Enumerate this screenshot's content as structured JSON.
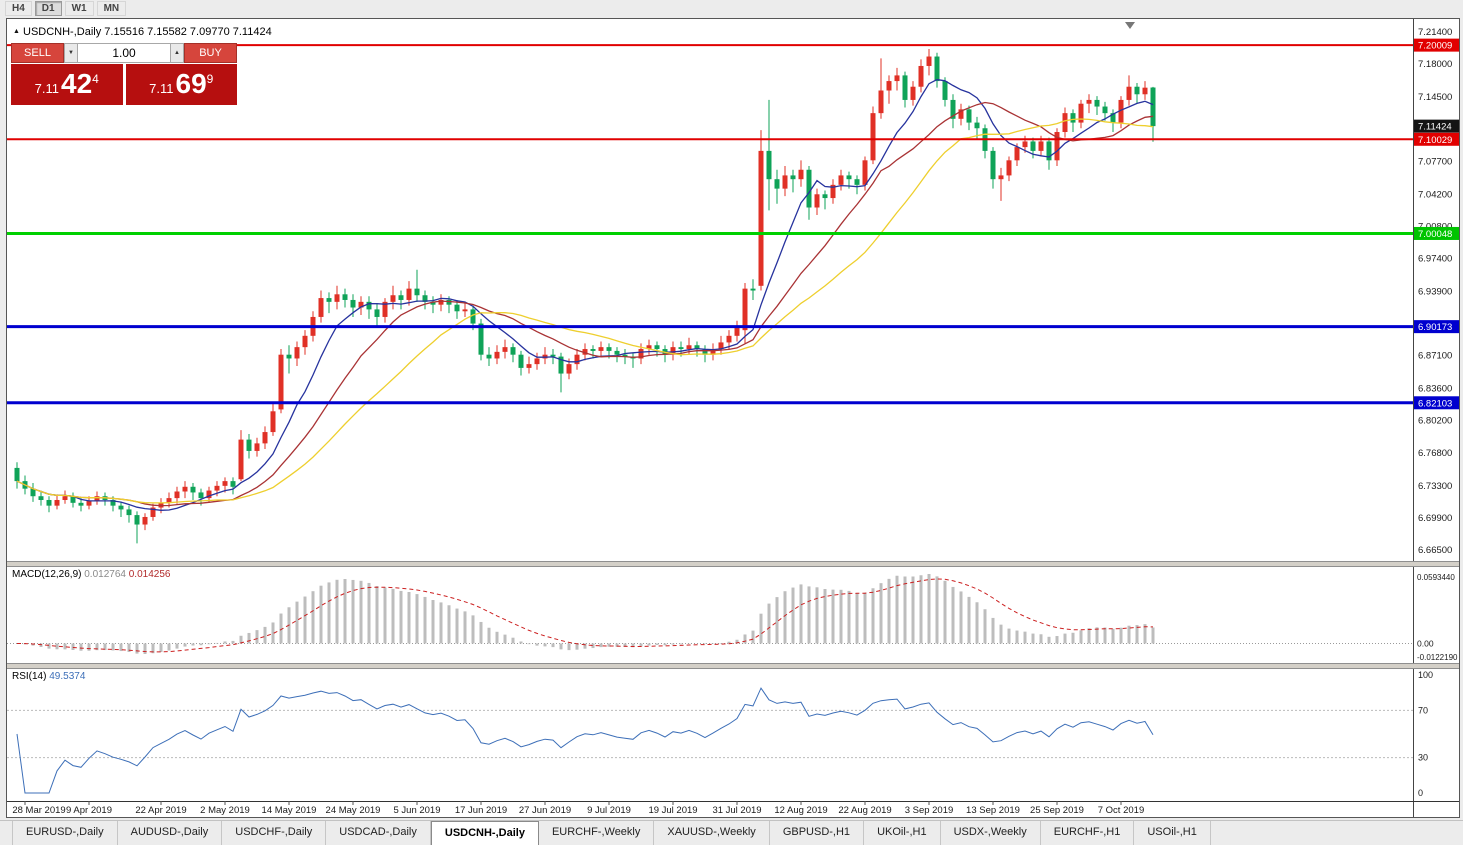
{
  "toolbar": {
    "periods": [
      "H4",
      "D1",
      "W1",
      "MN"
    ],
    "active": "D1"
  },
  "chart_header": {
    "marker": "▲",
    "title": "USDCNH-,Daily",
    "ohlc": "7.15516 7.15582 7.09770 7.11424"
  },
  "icons": {
    "spinner_up": "▲",
    "spinner_down": "▼",
    "shift_marker": "▼"
  },
  "trade_panel": {
    "sell_label": "SELL",
    "buy_label": "BUY",
    "volume": "1.00",
    "sell_price": {
      "prefix": "7.11",
      "big": "42",
      "sup": "4"
    },
    "buy_price": {
      "prefix": "7.11",
      "big": "69",
      "sup": "9"
    }
  },
  "indicators": {
    "macd": {
      "name": "MACD(12,26,9)",
      "value_main": "0.012764",
      "value_signal": "0.014256",
      "scale": [
        "0.0593440",
        "0.00",
        "-0.0122190"
      ]
    },
    "rsi": {
      "name": "RSI(14)",
      "value": "49.5374",
      "scale": [
        "100",
        "70",
        "30",
        "0"
      ],
      "levels": [
        70,
        30
      ]
    }
  },
  "price_scale": {
    "ticks": [
      "7.21400",
      "7.18000",
      "7.14500",
      "7.07700",
      "7.04200",
      "7.00800",
      "6.97400",
      "6.93900",
      "6.87100",
      "6.83600",
      "6.80200",
      "6.76800",
      "6.73300",
      "6.69900",
      "6.66500"
    ],
    "markers": [
      {
        "label": "7.20009",
        "value": 7.20009,
        "bg": "#e10000"
      },
      {
        "label": "7.11424",
        "value": 7.11424,
        "bg": "#141414"
      },
      {
        "label": "7.10029",
        "value": 7.10029,
        "bg": "#e10000"
      },
      {
        "label": "7.00048",
        "value": 7.00048,
        "bg": "#00c400"
      },
      {
        "label": "6.90173",
        "value": 6.90173,
        "bg": "#0000cf"
      },
      {
        "label": "6.82103",
        "value": 6.82103,
        "bg": "#0000cf"
      }
    ]
  },
  "chart_data": {
    "type": "candlestick",
    "symbol": "USDCNH",
    "timeframe": "Daily",
    "y_range": [
      6.665,
      7.214
    ],
    "up_color": "#e03026",
    "down_color": "#0fa358",
    "hlines": [
      {
        "value": 7.20009,
        "color": "#e10000",
        "width": 2
      },
      {
        "value": 7.10029,
        "color": "#e10000",
        "width": 2
      },
      {
        "value": 7.00048,
        "color": "#00d000",
        "width": 3
      },
      {
        "value": 6.90173,
        "color": "#0000cf",
        "width": 3
      },
      {
        "value": 6.82103,
        "color": "#0000cf",
        "width": 3
      }
    ],
    "moving_averages": [
      {
        "period": 8,
        "color": "#27339e"
      },
      {
        "period": 16,
        "color": "#a93335"
      },
      {
        "period": 26,
        "color": "#eecf2e"
      }
    ],
    "macd": {
      "fast": 12,
      "slow": 26,
      "signal": 9,
      "hist_color": "#bdbdbd",
      "signal_color": "#cc2020"
    },
    "rsi": {
      "period": 14,
      "color": "#3d6fb8"
    },
    "x_labels": [
      {
        "label": "28 Mar 2019",
        "i": 1
      },
      {
        "label": "9 Apr 2019",
        "i": 9
      },
      {
        "label": "22 Apr 2019",
        "i": 18
      },
      {
        "label": "2 May 2019",
        "i": 26
      },
      {
        "label": "14 May 2019",
        "i": 34
      },
      {
        "label": "24 May 2019",
        "i": 42
      },
      {
        "label": "5 Jun 2019",
        "i": 50
      },
      {
        "label": "17 Jun 2019",
        "i": 58
      },
      {
        "label": "27 Jun 2019",
        "i": 66
      },
      {
        "label": "9 Jul 2019",
        "i": 74
      },
      {
        "label": "19 Jul 2019",
        "i": 82
      },
      {
        "label": "31 Jul 2019",
        "i": 90
      },
      {
        "label": "12 Aug 2019",
        "i": 98
      },
      {
        "label": "22 Aug 2019",
        "i": 106
      },
      {
        "label": "3 Sep 2019",
        "i": 114
      },
      {
        "label": "13 Sep 2019",
        "i": 122
      },
      {
        "label": "25 Sep 2019",
        "i": 130
      },
      {
        "label": "7 Oct 2019",
        "i": 138
      }
    ],
    "candles": [
      [
        6.752,
        6.758,
        6.73,
        6.738
      ],
      [
        6.738,
        6.744,
        6.724,
        6.73
      ],
      [
        6.73,
        6.736,
        6.716,
        6.722
      ],
      [
        6.722,
        6.728,
        6.712,
        6.718
      ],
      [
        6.718,
        6.722,
        6.705,
        6.712
      ],
      [
        6.712,
        6.724,
        6.708,
        6.718
      ],
      [
        6.718,
        6.728,
        6.714,
        6.722
      ],
      [
        6.722,
        6.726,
        6.71,
        6.715
      ],
      [
        6.715,
        6.72,
        6.706,
        6.712
      ],
      [
        6.712,
        6.722,
        6.708,
        6.717
      ],
      [
        6.717,
        6.727,
        6.713,
        6.722
      ],
      [
        6.722,
        6.726,
        6.712,
        6.718
      ],
      [
        6.718,
        6.722,
        6.706,
        6.712
      ],
      [
        6.712,
        6.716,
        6.7,
        6.708
      ],
      [
        6.708,
        6.712,
        6.694,
        6.702
      ],
      [
        6.702,
        6.706,
        6.672,
        6.692
      ],
      [
        6.692,
        6.704,
        6.686,
        6.7
      ],
      [
        6.7,
        6.714,
        6.696,
        6.71
      ],
      [
        6.71,
        6.72,
        6.704,
        6.715
      ],
      [
        6.715,
        6.726,
        6.71,
        6.72
      ],
      [
        6.72,
        6.732,
        6.714,
        6.727
      ],
      [
        6.727,
        6.738,
        6.72,
        6.732
      ],
      [
        6.732,
        6.736,
        6.718,
        6.726
      ],
      [
        6.726,
        6.73,
        6.712,
        6.72
      ],
      [
        6.72,
        6.732,
        6.715,
        6.728
      ],
      [
        6.728,
        6.738,
        6.722,
        6.733
      ],
      [
        6.733,
        6.742,
        6.726,
        6.738
      ],
      [
        6.738,
        6.742,
        6.724,
        6.732
      ],
      [
        6.74,
        6.792,
        6.738,
        6.782
      ],
      [
        6.782,
        6.788,
        6.762,
        6.77
      ],
      [
        6.77,
        6.784,
        6.764,
        6.778
      ],
      [
        6.778,
        6.796,
        6.772,
        6.79
      ],
      [
        6.79,
        6.82,
        6.786,
        6.812
      ],
      [
        6.814,
        6.878,
        6.81,
        6.872
      ],
      [
        6.872,
        6.882,
        6.852,
        6.868
      ],
      [
        6.868,
        6.886,
        6.86,
        6.88
      ],
      [
        6.88,
        6.898,
        6.872,
        6.892
      ],
      [
        6.892,
        6.918,
        6.886,
        6.912
      ],
      [
        6.912,
        6.94,
        6.906,
        6.932
      ],
      [
        6.932,
        6.938,
        6.916,
        6.928
      ],
      [
        6.928,
        6.945,
        6.92,
        6.936
      ],
      [
        6.936,
        6.942,
        6.922,
        6.93
      ],
      [
        6.93,
        6.936,
        6.912,
        6.922
      ],
      [
        6.922,
        6.934,
        6.914,
        6.928
      ],
      [
        6.928,
        6.934,
        6.91,
        6.92
      ],
      [
        6.92,
        6.926,
        6.902,
        6.912
      ],
      [
        6.912,
        6.932,
        6.906,
        6.928
      ],
      [
        6.928,
        6.945,
        6.92,
        6.935
      ],
      [
        6.935,
        6.94,
        6.92,
        6.93
      ],
      [
        6.93,
        6.95,
        6.924,
        6.942
      ],
      [
        6.942,
        6.962,
        6.928,
        6.935
      ],
      [
        6.935,
        6.94,
        6.92,
        6.928
      ],
      [
        6.928,
        6.934,
        6.916,
        6.925
      ],
      [
        6.925,
        6.936,
        6.918,
        6.93
      ],
      [
        6.93,
        6.934,
        6.916,
        6.925
      ],
      [
        6.925,
        6.93,
        6.91,
        6.918
      ],
      [
        6.918,
        6.928,
        6.912,
        6.92
      ],
      [
        6.92,
        6.924,
        6.898,
        6.905
      ],
      [
        6.905,
        6.91,
        6.866,
        6.872
      ],
      [
        6.872,
        6.88,
        6.86,
        6.868
      ],
      [
        6.868,
        6.882,
        6.862,
        6.875
      ],
      [
        6.875,
        6.888,
        6.868,
        6.88
      ],
      [
        6.88,
        6.884,
        6.864,
        6.872
      ],
      [
        6.872,
        6.876,
        6.85,
        6.858
      ],
      [
        6.858,
        6.87,
        6.852,
        6.862
      ],
      [
        6.862,
        6.874,
        6.856,
        6.868
      ],
      [
        6.868,
        6.88,
        6.862,
        6.872
      ],
      [
        6.872,
        6.878,
        6.862,
        6.87
      ],
      [
        6.87,
        6.874,
        6.832,
        6.852
      ],
      [
        6.852,
        6.868,
        6.846,
        6.862
      ],
      [
        6.862,
        6.878,
        6.856,
        6.872
      ],
      [
        6.872,
        6.884,
        6.866,
        6.878
      ],
      [
        6.878,
        6.882,
        6.868,
        6.876
      ],
      [
        6.876,
        6.886,
        6.87,
        6.88
      ],
      [
        6.88,
        6.884,
        6.868,
        6.876
      ],
      [
        6.876,
        6.88,
        6.864,
        6.872
      ],
      [
        6.872,
        6.878,
        6.862,
        6.87
      ],
      [
        6.87,
        6.874,
        6.858,
        6.868
      ],
      [
        6.868,
        6.884,
        6.862,
        6.878
      ],
      [
        6.878,
        6.888,
        6.872,
        6.882
      ],
      [
        6.882,
        6.886,
        6.87,
        6.878
      ],
      [
        6.878,
        6.882,
        6.864,
        6.872
      ],
      [
        6.872,
        6.886,
        6.866,
        6.88
      ],
      [
        6.88,
        6.886,
        6.87,
        6.878
      ],
      [
        6.878,
        6.89,
        6.872,
        6.882
      ],
      [
        6.882,
        6.886,
        6.87,
        6.878
      ],
      [
        6.878,
        6.882,
        6.864,
        6.872
      ],
      [
        6.872,
        6.884,
        6.866,
        6.878
      ],
      [
        6.878,
        6.892,
        6.872,
        6.885
      ],
      [
        6.885,
        6.898,
        6.878,
        6.892
      ],
      [
        6.892,
        6.908,
        6.886,
        6.902
      ],
      [
        6.898,
        6.948,
        6.884,
        6.942
      ],
      [
        6.942,
        6.952,
        6.93,
        6.94
      ],
      [
        6.945,
        7.11,
        6.94,
        7.088
      ],
      [
        7.088,
        7.142,
        7.025,
        7.058
      ],
      [
        7.058,
        7.068,
        7.032,
        7.048
      ],
      [
        7.048,
        7.072,
        7.04,
        7.062
      ],
      [
        7.062,
        7.068,
        7.044,
        7.058
      ],
      [
        7.058,
        7.078,
        7.05,
        7.068
      ],
      [
        7.068,
        7.072,
        7.015,
        7.028
      ],
      [
        7.028,
        7.048,
        7.02,
        7.042
      ],
      [
        7.042,
        7.046,
        7.026,
        7.038
      ],
      [
        7.038,
        7.058,
        7.032,
        7.052
      ],
      [
        7.052,
        7.068,
        7.046,
        7.062
      ],
      [
        7.062,
        7.066,
        7.048,
        7.058
      ],
      [
        7.058,
        7.062,
        7.042,
        7.052
      ],
      [
        7.052,
        7.082,
        7.046,
        7.078
      ],
      [
        7.078,
        7.135,
        7.074,
        7.128
      ],
      [
        7.128,
        7.186,
        7.122,
        7.152
      ],
      [
        7.152,
        7.168,
        7.138,
        7.162
      ],
      [
        7.162,
        7.176,
        7.152,
        7.168
      ],
      [
        7.168,
        7.172,
        7.134,
        7.142
      ],
      [
        7.142,
        7.162,
        7.136,
        7.156
      ],
      [
        7.156,
        7.185,
        7.15,
        7.178
      ],
      [
        7.178,
        7.196,
        7.168,
        7.188
      ],
      [
        7.188,
        7.192,
        7.155,
        7.162
      ],
      [
        7.162,
        7.166,
        7.135,
        7.142
      ],
      [
        7.142,
        7.148,
        7.112,
        7.122
      ],
      [
        7.122,
        7.138,
        7.115,
        7.132
      ],
      [
        7.132,
        7.136,
        7.11,
        7.118
      ],
      [
        7.118,
        7.124,
        7.1,
        7.112
      ],
      [
        7.112,
        7.116,
        7.08,
        7.088
      ],
      [
        7.088,
        7.092,
        7.048,
        7.058
      ],
      [
        7.058,
        7.07,
        7.035,
        7.062
      ],
      [
        7.062,
        7.082,
        7.056,
        7.078
      ],
      [
        7.078,
        7.096,
        7.072,
        7.092
      ],
      [
        7.092,
        7.104,
        7.086,
        7.098
      ],
      [
        7.098,
        7.102,
        7.08,
        7.088
      ],
      [
        7.088,
        7.104,
        7.082,
        7.098
      ],
      [
        7.098,
        7.102,
        7.068,
        7.078
      ],
      [
        7.078,
        7.112,
        7.072,
        7.108
      ],
      [
        7.108,
        7.134,
        7.102,
        7.128
      ],
      [
        7.128,
        7.132,
        7.108,
        7.118
      ],
      [
        7.118,
        7.142,
        7.112,
        7.138
      ],
      [
        7.138,
        7.148,
        7.128,
        7.142
      ],
      [
        7.142,
        7.146,
        7.126,
        7.135
      ],
      [
        7.135,
        7.14,
        7.12,
        7.128
      ],
      [
        7.128,
        7.132,
        7.108,
        7.118
      ],
      [
        7.118,
        7.146,
        7.112,
        7.142
      ],
      [
        7.142,
        7.168,
        7.136,
        7.156
      ],
      [
        7.156,
        7.16,
        7.138,
        7.148
      ],
      [
        7.148,
        7.162,
        7.142,
        7.155
      ],
      [
        7.15516,
        7.15582,
        7.0977,
        7.11424
      ]
    ]
  },
  "tabs": [
    "EURUSD-,Daily",
    "AUDUSD-,Daily",
    "USDCHF-,Daily",
    "USDCAD-,Daily",
    "USDCNH-,Daily",
    "EURCHF-,Weekly",
    "XAUUSD-,Weekly",
    "GBPUSD-,H1",
    "UKOil-,H1",
    "USDX-,Weekly",
    "EURCHF-,H1",
    "USOil-,H1"
  ],
  "active_tab": "USDCNH-,Daily"
}
